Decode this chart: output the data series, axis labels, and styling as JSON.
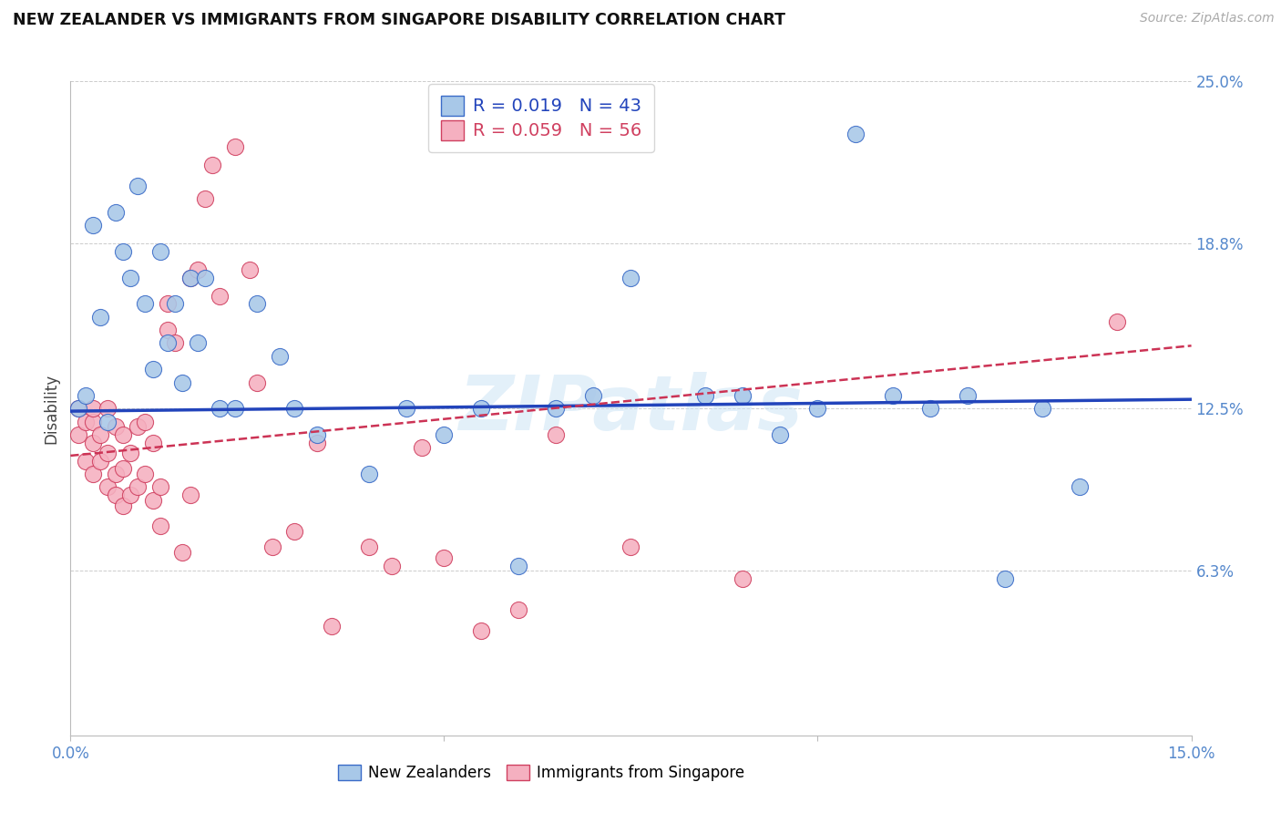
{
  "title": "NEW ZEALANDER VS IMMIGRANTS FROM SINGAPORE DISABILITY CORRELATION CHART",
  "source": "Source: ZipAtlas.com",
  "ylabel": "Disability",
  "xlim": [
    0.0,
    0.15
  ],
  "ylim": [
    0.0,
    0.25
  ],
  "xticks": [
    0.0,
    0.05,
    0.1,
    0.15
  ],
  "xticklabels": [
    "0.0%",
    "",
    "",
    "15.0%"
  ],
  "ytick_vals": [
    0.0,
    0.063,
    0.125,
    0.188,
    0.25
  ],
  "ytick_labels": [
    "",
    "6.3%",
    "12.5%",
    "18.8%",
    "25.0%"
  ],
  "grid_color": "#cccccc",
  "bg_color": "#ffffff",
  "watermark_text": "ZIPatlas",
  "nz_R": 0.019,
  "nz_N": 43,
  "sg_R": 0.059,
  "sg_N": 56,
  "nz_face_color": "#a8c8e8",
  "nz_edge_color": "#3a6bc8",
  "sg_face_color": "#f5b0c0",
  "sg_edge_color": "#d04060",
  "nz_line_color": "#2244bb",
  "sg_line_color": "#cc3355",
  "nz_x": [
    0.001,
    0.002,
    0.003,
    0.004,
    0.005,
    0.006,
    0.007,
    0.008,
    0.009,
    0.01,
    0.011,
    0.012,
    0.013,
    0.014,
    0.015,
    0.016,
    0.017,
    0.018,
    0.02,
    0.022,
    0.025,
    0.028,
    0.03,
    0.033,
    0.04,
    0.045,
    0.05,
    0.055,
    0.06,
    0.065,
    0.07,
    0.075,
    0.085,
    0.09,
    0.095,
    0.1,
    0.105,
    0.11,
    0.115,
    0.12,
    0.125,
    0.13,
    0.135
  ],
  "nz_y": [
    0.125,
    0.13,
    0.195,
    0.16,
    0.12,
    0.2,
    0.185,
    0.175,
    0.21,
    0.165,
    0.14,
    0.185,
    0.15,
    0.165,
    0.135,
    0.175,
    0.15,
    0.175,
    0.125,
    0.125,
    0.165,
    0.145,
    0.125,
    0.115,
    0.1,
    0.125,
    0.115,
    0.125,
    0.065,
    0.125,
    0.13,
    0.175,
    0.13,
    0.13,
    0.115,
    0.125,
    0.23,
    0.13,
    0.125,
    0.13,
    0.06,
    0.125,
    0.095
  ],
  "sg_x": [
    0.001,
    0.001,
    0.002,
    0.002,
    0.003,
    0.003,
    0.003,
    0.003,
    0.004,
    0.004,
    0.005,
    0.005,
    0.005,
    0.006,
    0.006,
    0.006,
    0.007,
    0.007,
    0.007,
    0.008,
    0.008,
    0.009,
    0.009,
    0.01,
    0.01,
    0.011,
    0.011,
    0.012,
    0.012,
    0.013,
    0.013,
    0.014,
    0.015,
    0.016,
    0.016,
    0.017,
    0.018,
    0.019,
    0.02,
    0.022,
    0.024,
    0.025,
    0.027,
    0.03,
    0.033,
    0.035,
    0.04,
    0.043,
    0.047,
    0.05,
    0.055,
    0.06,
    0.065,
    0.075,
    0.09,
    0.14
  ],
  "sg_y": [
    0.125,
    0.115,
    0.105,
    0.12,
    0.1,
    0.112,
    0.12,
    0.125,
    0.105,
    0.115,
    0.095,
    0.108,
    0.125,
    0.092,
    0.1,
    0.118,
    0.088,
    0.102,
    0.115,
    0.092,
    0.108,
    0.095,
    0.118,
    0.1,
    0.12,
    0.09,
    0.112,
    0.08,
    0.095,
    0.155,
    0.165,
    0.15,
    0.07,
    0.175,
    0.092,
    0.178,
    0.205,
    0.218,
    0.168,
    0.225,
    0.178,
    0.135,
    0.072,
    0.078,
    0.112,
    0.042,
    0.072,
    0.065,
    0.11,
    0.068,
    0.04,
    0.048,
    0.115,
    0.072,
    0.06,
    0.158
  ]
}
